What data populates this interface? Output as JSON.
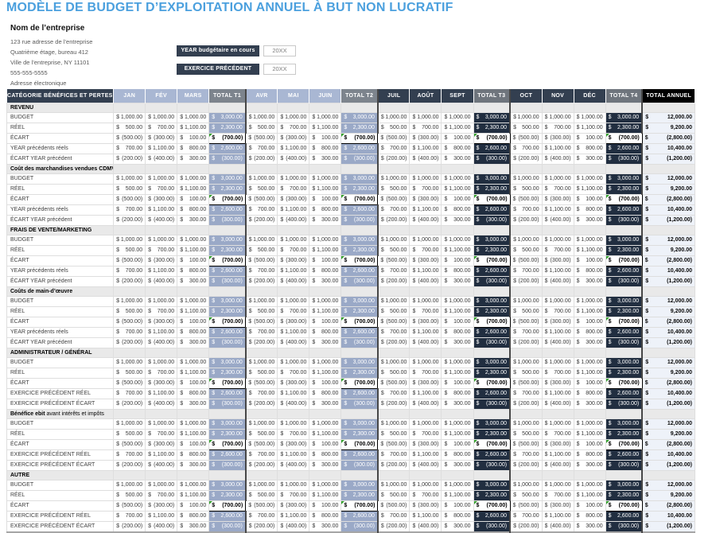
{
  "page": {
    "title": "MODÈLE DE BUDGET D’EXPLOITATION ANNUEL À BUT NON LUCRATIF"
  },
  "company": {
    "name": "Nom de l’entreprise",
    "lines": [
      "123 rue adresse de l’entreprise",
      "Quatrième étage, bureau 412",
      "Ville de l’entreprise, NY 11101",
      "555-555-5555",
      "Adresse électronique"
    ]
  },
  "fields": [
    {
      "label": "YEAR budgétaire en cours",
      "value": "20XX"
    },
    {
      "label": "EXERCICE PRÉCÉDENT",
      "value": "20XX"
    }
  ],
  "colors": {
    "title_accent": "#4BA0DE",
    "navy": "#333F50",
    "month_header_light": "#A9B7D3",
    "quarter_total_header_gray": "#7D848D",
    "q12_total_cell": "#9AA9C7",
    "q34_total_cell": "#212E40",
    "annual_header": "#000000",
    "annual_cell_bg": "#EEF2F9",
    "section_row_bg": "#E9E9E9",
    "flag_green": "#33A02C"
  },
  "table": {
    "category_header": "CATÉGORIE BÉNÉFICES ET PERTES",
    "annual_header": "TOTAL ANNUEL",
    "currency": "$",
    "quarters": [
      {
        "months": [
          "JAN",
          "FÉV",
          "MARS"
        ],
        "total": "TOTAL T1",
        "theme": "light"
      },
      {
        "months": [
          "AVR",
          "MAI",
          "JUIN"
        ],
        "total": "TOTAL T2",
        "theme": "light"
      },
      {
        "months": [
          "JUIL",
          "AOÛT",
          "SEPT"
        ],
        "total": "TOTAL T3",
        "theme": "dark"
      },
      {
        "months": [
          "OCT",
          "NOV",
          "DÉC"
        ],
        "total": "TOTAL T4",
        "theme": "dark"
      }
    ],
    "row_keys": [
      "budget",
      "reel",
      "ecart",
      "prev_reel",
      "prev_ecart"
    ],
    "row_label_sets": {
      "year_style": [
        "BUDGET",
        "RÉEL",
        "ÉCART",
        "YEAR précédents réels",
        "ÉCART YEAR précédent"
      ],
      "exercice_style": [
        "BUDGET",
        "RÉEL",
        "ÉCART",
        "EXERCICE PRÉCÉDENT RÉEL",
        "EXERCICE PRÉCÉDENT ÉCART"
      ]
    },
    "row_values": {
      "budget": {
        "months": [
          "1,000.00",
          "1,000.00",
          "1,000.00"
        ],
        "quarter_total": "3,000.00",
        "annual": "12,000.00"
      },
      "reel": {
        "months": [
          "500.00",
          "700.00",
          "1,100.00"
        ],
        "quarter_total": "2,300.00",
        "annual": "9,200.00"
      },
      "ecart": {
        "months": [
          "(500.00)",
          "(300.00)",
          "100.00"
        ],
        "quarter_total": "(700.00)",
        "annual": "(2,800.00)"
      },
      "prev_reel": {
        "months": [
          "700.00",
          "1,100.00",
          "800.00"
        ],
        "quarter_total": "2,600.00",
        "annual": "10,400.00"
      },
      "prev_ecart": {
        "months": [
          "(200.00)",
          "(400.00)",
          "300.00"
        ],
        "quarter_total": "(300.00)",
        "annual": "(1,200.00)"
      }
    },
    "sections": [
      {
        "label": "REVENU",
        "label_suffix": "",
        "labels": "year_style"
      },
      {
        "label": "Coût des marchandises vendues CDMV",
        "label_suffix": "",
        "labels": "year_style"
      },
      {
        "label": "FRAIS DE VENTE/MARKETING",
        "label_suffix": "",
        "labels": "year_style"
      },
      {
        "label": "Coûts de main-d’œuvre",
        "label_suffix": "",
        "labels": "year_style"
      },
      {
        "label": "ADMINISTRATEUR / GÉNÉRAL",
        "label_suffix": "",
        "labels": "exercice_style"
      },
      {
        "label": "Bénéfice ebit",
        "label_suffix": " avant intérêts et impôts",
        "labels": "exercice_style"
      },
      {
        "label": "AUTRE",
        "label_suffix": "",
        "labels": "exercice_style"
      }
    ]
  }
}
